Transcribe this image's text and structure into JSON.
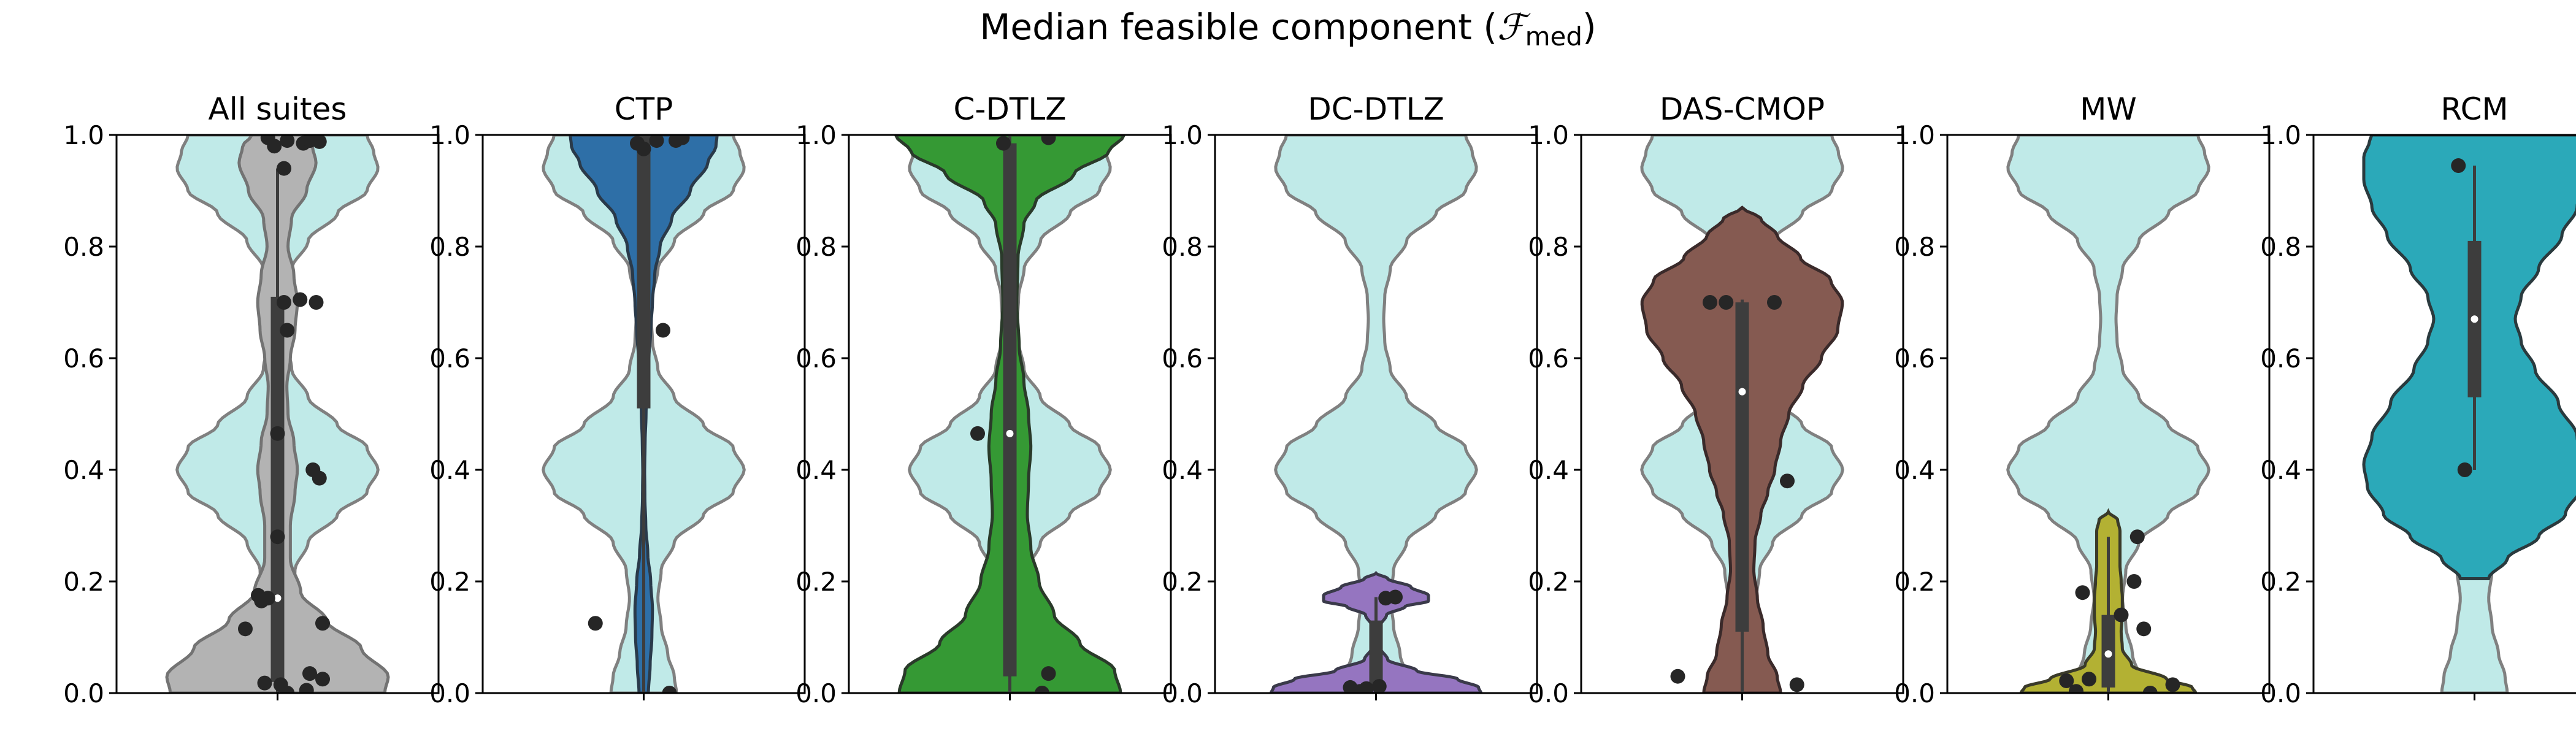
{
  "figure": {
    "title_prefix": "Median feasible component (",
    "title_symbol": "ℱ",
    "title_subscript": "med",
    "title_suffix": ")"
  },
  "colors": {
    "reference_fill": "#c0eae8",
    "reference_edge": "#808080",
    "median_dot": "#ffffff",
    "points": "#262626",
    "box": "#3d3d3d"
  },
  "chart_data": [
    {
      "type": "violin",
      "title": "All suites",
      "ylim": [
        0,
        1
      ],
      "yticks": [
        "0.0",
        "0.2",
        "0.4",
        "0.6",
        "0.8",
        "1.0"
      ],
      "color": "#b3b3b3",
      "edge": "#737373",
      "violin_extent": [
        0,
        1
      ],
      "density": [
        [
          0,
          0.92
        ],
        [
          0.03,
          0.95
        ],
        [
          0.08,
          0.72
        ],
        [
          0.13,
          0.42
        ],
        [
          0.18,
          0.2
        ],
        [
          0.24,
          0.11
        ],
        [
          0.3,
          0.11
        ],
        [
          0.36,
          0.15
        ],
        [
          0.4,
          0.17
        ],
        [
          0.45,
          0.14
        ],
        [
          0.5,
          0.09
        ],
        [
          0.55,
          0.08
        ],
        [
          0.6,
          0.11
        ],
        [
          0.65,
          0.15
        ],
        [
          0.7,
          0.17
        ],
        [
          0.75,
          0.14
        ],
        [
          0.8,
          0.09
        ],
        [
          0.85,
          0.12
        ],
        [
          0.9,
          0.25
        ],
        [
          0.95,
          0.33
        ],
        [
          0.98,
          0.3
        ],
        [
          1,
          0.22
        ]
      ],
      "points": [
        [
          -0.03,
          0.995
        ],
        [
          0.03,
          0.99
        ],
        [
          0.08,
          0.985
        ],
        [
          0.1,
          0.99
        ],
        [
          0.13,
          0.988
        ],
        [
          -0.01,
          0.98
        ],
        [
          0.02,
          0.94
        ],
        [
          0.07,
          0.705
        ],
        [
          0.12,
          0.7
        ],
        [
          0.02,
          0.7
        ],
        [
          0.03,
          0.65
        ],
        [
          0.0,
          0.465
        ],
        [
          0.11,
          0.4
        ],
        [
          0.13,
          0.385
        ],
        [
          0.0,
          0.28
        ],
        [
          -0.06,
          0.175
        ],
        [
          -0.03,
          0.17
        ],
        [
          -0.05,
          0.165
        ],
        [
          -0.1,
          0.115
        ],
        [
          0.14,
          0.125
        ],
        [
          0.1,
          0.035
        ],
        [
          0.14,
          0.025
        ],
        [
          -0.04,
          0.018
        ],
        [
          0.01,
          0.015
        ],
        [
          0.09,
          0.005
        ],
        [
          0.03,
          0.0
        ]
      ],
      "box": {
        "q1": 0.02,
        "median": 0.17,
        "q3": 0.71,
        "whisker_low": 0.0,
        "whisker_high": 0.94
      }
    },
    {
      "type": "violin",
      "title": "CTP",
      "ylim": [
        0,
        1
      ],
      "yticks": [
        "0.0",
        "0.2",
        "0.4",
        "0.6",
        "0.8",
        "1.0"
      ],
      "color": "#2e6fa7",
      "edge": "#2a3a4a",
      "violin_extent": [
        0,
        1
      ],
      "density": [
        [
          0,
          0.04
        ],
        [
          0.05,
          0.055
        ],
        [
          0.1,
          0.07
        ],
        [
          0.15,
          0.075
        ],
        [
          0.2,
          0.06
        ],
        [
          0.25,
          0.035
        ],
        [
          0.3,
          0.018
        ],
        [
          0.35,
          0.01
        ],
        [
          0.4,
          0.008
        ],
        [
          0.45,
          0.012
        ],
        [
          0.5,
          0.02
        ],
        [
          0.55,
          0.03
        ],
        [
          0.6,
          0.045
        ],
        [
          0.65,
          0.06
        ],
        [
          0.7,
          0.075
        ],
        [
          0.75,
          0.095
        ],
        [
          0.8,
          0.14
        ],
        [
          0.85,
          0.24
        ],
        [
          0.9,
          0.4
        ],
        [
          0.95,
          0.55
        ],
        [
          0.98,
          0.62
        ],
        [
          1,
          0.63
        ]
      ],
      "points": [
        [
          -0.15,
          0.125
        ],
        [
          0.08,
          0.0
        ],
        [
          0.06,
          0.65
        ],
        [
          0.0,
          0.975
        ],
        [
          0.04,
          0.99
        ],
        [
          0.1,
          0.99
        ],
        [
          -0.02,
          0.985
        ],
        [
          0.12,
          0.995
        ]
      ],
      "box": {
        "q1": 0.51,
        "median": 0.975,
        "q3": 1.0,
        "whisker_low": 0.0,
        "whisker_high": 1.0
      }
    },
    {
      "type": "violin",
      "title": "C-DTLZ",
      "ylim": [
        0,
        1
      ],
      "yticks": [
        "0.0",
        "0.2",
        "0.4",
        "0.6",
        "0.8",
        "1.0"
      ],
      "color": "#359934",
      "edge": "#2a3a2a",
      "violin_extent": [
        0,
        1
      ],
      "density": [
        [
          0,
          0.95
        ],
        [
          0.04,
          0.9
        ],
        [
          0.09,
          0.6
        ],
        [
          0.14,
          0.38
        ],
        [
          0.2,
          0.25
        ],
        [
          0.26,
          0.18
        ],
        [
          0.32,
          0.15
        ],
        [
          0.38,
          0.16
        ],
        [
          0.44,
          0.18
        ],
        [
          0.5,
          0.16
        ],
        [
          0.56,
          0.12
        ],
        [
          0.62,
          0.08
        ],
        [
          0.7,
          0.06
        ],
        [
          0.78,
          0.07
        ],
        [
          0.84,
          0.12
        ],
        [
          0.88,
          0.22
        ],
        [
          0.93,
          0.55
        ],
        [
          0.97,
          0.85
        ],
        [
          1,
          0.98
        ]
      ],
      "points": [
        [
          -0.1,
          0.465
        ],
        [
          -0.02,
          0.985
        ],
        [
          0.12,
          0.995
        ],
        [
          0.12,
          0.035
        ],
        [
          0.1,
          0.0
        ]
      ],
      "box": {
        "q1": 0.03,
        "median": 0.465,
        "q3": 0.985,
        "whisker_low": 0.0,
        "whisker_high": 1.0
      }
    },
    {
      "type": "violin",
      "title": "DC-DTLZ",
      "ylim": [
        0,
        1
      ],
      "yticks": [
        "0.0",
        "0.2",
        "0.4",
        "0.6",
        "0.8",
        "1.0"
      ],
      "color": "#9575c0",
      "edge": "#3a3a4a",
      "violin_extent": [
        0,
        0.215
      ],
      "density": [
        [
          0,
          0.9
        ],
        [
          0.01,
          0.88
        ],
        [
          0.025,
          0.7
        ],
        [
          0.04,
          0.35
        ],
        [
          0.06,
          0.1
        ],
        [
          0.08,
          0.04
        ],
        [
          0.1,
          0.03
        ],
        [
          0.12,
          0.035
        ],
        [
          0.14,
          0.09
        ],
        [
          0.155,
          0.25
        ],
        [
          0.165,
          0.45
        ],
        [
          0.175,
          0.45
        ],
        [
          0.19,
          0.3
        ],
        [
          0.205,
          0.1
        ],
        [
          0.215,
          0.0
        ]
      ],
      "points": [
        [
          0.03,
          0.17
        ],
        [
          0.06,
          0.172
        ],
        [
          -0.08,
          0.01
        ],
        [
          -0.03,
          0.008
        ],
        [
          0.01,
          0.012
        ],
        [
          -0.05,
          0.003
        ]
      ],
      "box": {
        "q1": 0.01,
        "median": 0.01,
        "q3": 0.13,
        "whisker_low": 0.0,
        "whisker_high": 0.172
      }
    },
    {
      "type": "violin",
      "title": "DAS-CMOP",
      "ylim": [
        0,
        1
      ],
      "yticks": [
        "0.0",
        "0.2",
        "0.4",
        "0.6",
        "0.8",
        "1.0"
      ],
      "color": "#855a51",
      "edge": "#3a2a2a",
      "violin_extent": [
        0,
        0.87
      ],
      "density": [
        [
          0,
          0.33
        ],
        [
          0.03,
          0.3
        ],
        [
          0.07,
          0.22
        ],
        [
          0.12,
          0.18
        ],
        [
          0.17,
          0.13
        ],
        [
          0.22,
          0.1
        ],
        [
          0.27,
          0.11
        ],
        [
          0.32,
          0.16
        ],
        [
          0.36,
          0.22
        ],
        [
          0.4,
          0.28
        ],
        [
          0.45,
          0.33
        ],
        [
          0.5,
          0.4
        ],
        [
          0.55,
          0.52
        ],
        [
          0.6,
          0.68
        ],
        [
          0.65,
          0.82
        ],
        [
          0.7,
          0.86
        ],
        [
          0.74,
          0.76
        ],
        [
          0.78,
          0.5
        ],
        [
          0.82,
          0.3
        ],
        [
          0.85,
          0.16
        ],
        [
          0.87,
          0.0
        ]
      ],
      "points": [
        [
          -0.1,
          0.7
        ],
        [
          -0.05,
          0.7
        ],
        [
          0.1,
          0.7
        ],
        [
          0.14,
          0.38
        ],
        [
          -0.2,
          0.03
        ],
        [
          0.17,
          0.015
        ]
      ],
      "box": {
        "q1": 0.11,
        "median": 0.54,
        "q3": 0.7,
        "whisker_low": 0.0,
        "whisker_high": 0.705
      }
    },
    {
      "type": "violin",
      "title": "MW",
      "ylim": [
        0,
        1
      ],
      "yticks": [
        "0.0",
        "0.2",
        "0.4",
        "0.6",
        "0.8",
        "1.0"
      ],
      "color": "#b3b133",
      "edge": "#3a3a2a",
      "violin_extent": [
        0,
        0.325
      ],
      "density": [
        [
          0,
          0.75
        ],
        [
          0.01,
          0.72
        ],
        [
          0.025,
          0.5
        ],
        [
          0.05,
          0.2
        ],
        [
          0.08,
          0.12
        ],
        [
          0.11,
          0.11
        ],
        [
          0.14,
          0.12
        ],
        [
          0.17,
          0.12
        ],
        [
          0.2,
          0.11
        ],
        [
          0.23,
          0.1
        ],
        [
          0.26,
          0.1
        ],
        [
          0.29,
          0.1
        ],
        [
          0.31,
          0.08
        ],
        [
          0.325,
          0.0
        ]
      ],
      "points": [
        [
          0.09,
          0.28
        ],
        [
          -0.08,
          0.18
        ],
        [
          0.08,
          0.2
        ],
        [
          0.04,
          0.14
        ],
        [
          0.11,
          0.115
        ],
        [
          -0.13,
          0.022
        ],
        [
          -0.06,
          0.025
        ],
        [
          0.2,
          0.015
        ],
        [
          0.13,
          0.0
        ],
        [
          -0.1,
          0.003
        ]
      ],
      "box": {
        "q1": 0.01,
        "median": 0.07,
        "q3": 0.14,
        "whisker_low": 0.0,
        "whisker_high": 0.28
      }
    },
    {
      "type": "violin",
      "title": "RCM",
      "ylim": [
        0,
        1
      ],
      "yticks": [
        "0.0",
        "0.2",
        "0.4",
        "0.6",
        "0.8",
        "1.0"
      ],
      "color": "#2ba9b9",
      "edge": "#2a3a3e",
      "violin_extent": [
        0.205,
        1
      ],
      "density": [
        [
          0.205,
          0.12
        ],
        [
          0.24,
          0.28
        ],
        [
          0.28,
          0.55
        ],
        [
          0.32,
          0.78
        ],
        [
          0.37,
          0.92
        ],
        [
          0.41,
          0.95
        ],
        [
          0.46,
          0.88
        ],
        [
          0.52,
          0.72
        ],
        [
          0.58,
          0.52
        ],
        [
          0.63,
          0.4
        ],
        [
          0.67,
          0.35
        ],
        [
          0.71,
          0.4
        ],
        [
          0.76,
          0.55
        ],
        [
          0.82,
          0.75
        ],
        [
          0.87,
          0.88
        ],
        [
          0.92,
          0.95
        ],
        [
          0.96,
          0.95
        ],
        [
          0.99,
          0.9
        ],
        [
          1,
          0.88
        ]
      ],
      "points": [
        [
          -0.05,
          0.945
        ],
        [
          -0.03,
          0.4
        ]
      ],
      "box": {
        "q1": 0.53,
        "median": 0.67,
        "q3": 0.81,
        "whisker_low": 0.4,
        "whisker_high": 0.945
      }
    }
  ],
  "reference_density": [
    [
      0,
      0.3
    ],
    [
      0.03,
      0.28
    ],
    [
      0.07,
      0.22
    ],
    [
      0.12,
      0.16
    ],
    [
      0.17,
      0.13
    ],
    [
      0.22,
      0.16
    ],
    [
      0.27,
      0.28
    ],
    [
      0.32,
      0.55
    ],
    [
      0.36,
      0.82
    ],
    [
      0.4,
      0.92
    ],
    [
      0.44,
      0.82
    ],
    [
      0.48,
      0.55
    ],
    [
      0.53,
      0.28
    ],
    [
      0.58,
      0.13
    ],
    [
      0.63,
      0.08
    ],
    [
      0.67,
      0.07
    ],
    [
      0.71,
      0.08
    ],
    [
      0.76,
      0.13
    ],
    [
      0.81,
      0.28
    ],
    [
      0.86,
      0.55
    ],
    [
      0.9,
      0.82
    ],
    [
      0.94,
      0.92
    ],
    [
      0.97,
      0.88
    ],
    [
      1,
      0.82
    ]
  ]
}
